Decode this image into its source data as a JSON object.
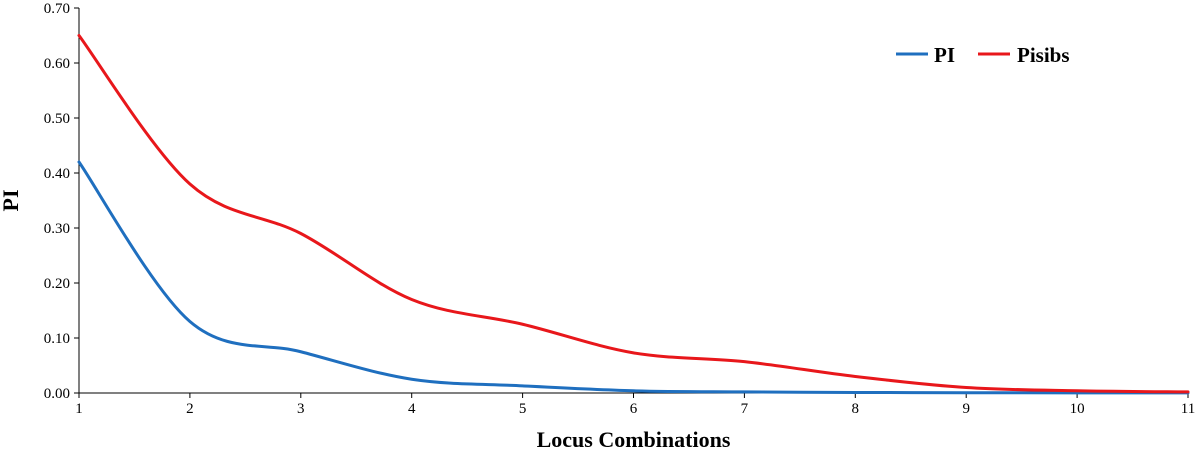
{
  "chart_data": {
    "type": "line",
    "x": [
      1,
      2,
      3,
      4,
      5,
      6,
      7,
      8,
      9,
      10,
      11
    ],
    "series": [
      {
        "name": "PI",
        "color": "#1f6fbf",
        "values": [
          0.42,
          0.13,
          0.075,
          0.025,
          0.013,
          0.004,
          0.002,
          0.001,
          0.0005,
          0.0003,
          0.0002
        ]
      },
      {
        "name": "Pisibs",
        "color": "#e8171b",
        "values": [
          0.65,
          0.38,
          0.29,
          0.17,
          0.125,
          0.073,
          0.057,
          0.03,
          0.01,
          0.004,
          0.002
        ]
      }
    ],
    "xlabel": "Locus Combinations",
    "ylabel": "PI",
    "xlim": [
      1,
      11
    ],
    "ylim": [
      0,
      0.7
    ],
    "x_ticks": [
      "1",
      "2",
      "3",
      "4",
      "5",
      "6",
      "7",
      "8",
      "9",
      "10",
      "11"
    ],
    "y_ticks": [
      "0.00",
      "0.10",
      "0.20",
      "0.30",
      "0.40",
      "0.50",
      "0.60",
      "0.70"
    ],
    "grid": false,
    "legend_position": "top-right"
  }
}
